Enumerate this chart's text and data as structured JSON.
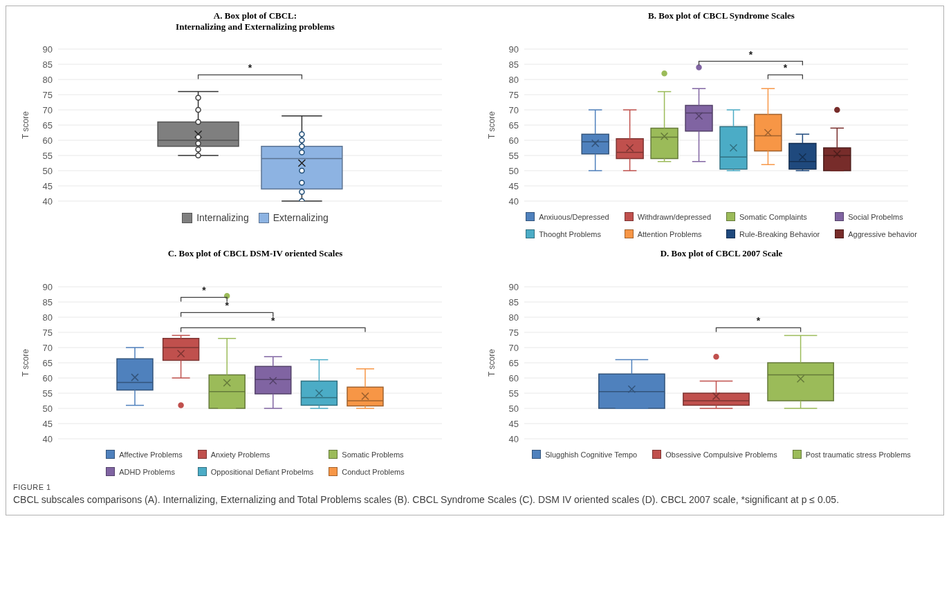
{
  "chart_data": [
    {
      "type": "box",
      "title": "A. Box plot of CBCL:\nInternalizing and Externalizing problems",
      "ylabel": "T score",
      "categories": [
        null
      ],
      "ylim": [
        40,
        90
      ],
      "yticks": [
        40,
        45,
        50,
        55,
        60,
        65,
        70,
        75,
        80,
        85,
        90
      ],
      "grid": "y",
      "legend": "bottom",
      "marker": "circle",
      "series": [
        {
          "name": "Internalizing",
          "color": "#7f7f7f",
          "boxes": [
            {
              "low": 55,
              "q1": 58,
              "median": 60,
              "q3": 66,
              "high": 76,
              "mean": 62
            }
          ]
        },
        {
          "type": "scatter",
          "color": "#404040",
          "x": [
            null,
            null,
            null,
            null,
            null,
            null,
            null
          ],
          "values": [
            74,
            70,
            66,
            61,
            59,
            57,
            55
          ]
        },
        {
          "name": "Externalizing",
          "color": "#8db3e2",
          "boxes": [
            {
              "low": 40,
              "q1": 44,
              "median": 54,
              "q3": 58,
              "high": 68,
              "mean": 52.5
            }
          ]
        },
        {
          "type": "scatter",
          "color": "#1f4e79",
          "x": [
            null,
            null,
            null,
            null,
            null,
            null,
            null,
            null
          ],
          "values": [
            62,
            60,
            58,
            56,
            50,
            46,
            43,
            40
          ]
        }
      ],
      "annotations": [
        "*"
      ]
    },
    {
      "type": "box",
      "title": "B. Box plot of CBCL Syndrome Scales",
      "ylabel": "T score",
      "categories": [
        null
      ],
      "ylim": [
        40,
        90
      ],
      "yticks": [
        40,
        45,
        50,
        55,
        60,
        65,
        70,
        75,
        80,
        85,
        90
      ],
      "grid": "y",
      "legend": "bottom",
      "series": [
        {
          "name": "Anxiuous/Depressed",
          "color": "#4f81bd",
          "boxes": [
            {
              "low": 50,
              "q1": 55.5,
              "median": 59.5,
              "q3": 62,
              "high": 70,
              "mean": 59
            }
          ]
        },
        {
          "name": "Withdrawn/depressed",
          "color": "#c0504d",
          "boxes": [
            {
              "low": 50,
              "q1": 54,
              "median": 56,
              "q3": 60.5,
              "high": 70,
              "mean": 57.5
            }
          ]
        },
        {
          "name": "Somatic Complaints",
          "color": "#9bbb59",
          "boxes": [
            {
              "low": 53,
              "q1": 54,
              "median": 61,
              "q3": 64,
              "high": 76,
              "mean": 61.3,
              "outliers": [
                82
              ]
            }
          ]
        },
        {
          "name": "Social Probelms",
          "color": "#8064a2",
          "boxes": [
            {
              "low": 53,
              "q1": 63,
              "median": 69,
              "q3": 71.5,
              "high": 77,
              "mean": 68,
              "outliers": [
                84
              ]
            }
          ]
        },
        {
          "name": "Thooght Problems",
          "color": "#4bacc6",
          "boxes": [
            {
              "low": 50,
              "q1": 50.5,
              "median": 54.5,
              "q3": 64.5,
              "high": 70,
              "mean": 57.5
            }
          ]
        },
        {
          "name": "Attention Problems",
          "color": "#f79646",
          "boxes": [
            {
              "low": 52,
              "q1": 56.5,
              "median": 61.5,
              "q3": 68.5,
              "high": 77,
              "mean": 62.5
            }
          ]
        },
        {
          "name": "Rule-Breaking Behavior",
          "color": "#1f497d",
          "boxes": [
            {
              "low": 50,
              "q1": 50.5,
              "median": 53,
              "q3": 59,
              "high": 62,
              "mean": 54.5
            }
          ]
        },
        {
          "name": "Aggressive behavior",
          "color": "#772c2a",
          "boxes": [
            {
              "low": 50,
              "q1": 50,
              "median": 55,
              "q3": 57.5,
              "high": 64,
              "mean": 55.5,
              "outliers": [
                70
              ]
            }
          ]
        }
      ],
      "annotations": [
        "*",
        "*"
      ]
    },
    {
      "type": "box",
      "title": "C. Box plot of CBCL DSM-IV oriented Scales",
      "ylabel": "T score",
      "categories": [
        null
      ],
      "ylim": [
        40,
        90
      ],
      "yticks": [
        40,
        45,
        50,
        55,
        60,
        65,
        70,
        75,
        80,
        85,
        90
      ],
      "grid": "y",
      "legend": "bottom",
      "series": [
        {
          "name": "Affective Problems",
          "color": "#4f81bd",
          "boxes": [
            {
              "low": 51,
              "q1": 56,
              "median": 58.5,
              "q3": 66.3,
              "high": 70,
              "mean": 60.2
            }
          ]
        },
        {
          "name": "Anxiety Problems",
          "color": "#c0504d",
          "boxes": [
            {
              "low": 60,
              "q1": 65.8,
              "median": 70,
              "q3": 73,
              "high": 74,
              "mean": 68,
              "outliers": [
                51
              ]
            }
          ]
        },
        {
          "name": "Somatic Problems",
          "color": "#9bbb59",
          "boxes": [
            {
              "low": 50,
              "q1": 50,
              "median": 55.5,
              "q3": 61,
              "high": 73,
              "mean": 58.4,
              "outliers": [
                87
              ]
            }
          ]
        },
        {
          "name": "ADHD Problems",
          "color": "#8064a2",
          "boxes": [
            {
              "low": 50,
              "q1": 54.8,
              "median": 59.5,
              "q3": 63.8,
              "high": 67,
              "mean": 59.1
            }
          ]
        },
        {
          "name": "Oppositional Defiant Probelms",
          "color": "#4bacc6",
          "boxes": [
            {
              "low": 50,
              "q1": 51,
              "median": 53.5,
              "q3": 59,
              "high": 66,
              "mean": 55
            }
          ]
        },
        {
          "name": "Conduct Problems",
          "color": "#f79646",
          "boxes": [
            {
              "low": 50,
              "q1": 50.8,
              "median": 52.5,
              "q3": 57,
              "high": 63,
              "mean": 54
            }
          ]
        }
      ],
      "annotations": [
        "*",
        "*",
        "*"
      ]
    },
    {
      "type": "box",
      "title": "D. Box plot of CBCL 2007 Scale",
      "ylabel": "T score",
      "categories": [
        null
      ],
      "ylim": [
        40,
        90
      ],
      "yticks": [
        40,
        45,
        50,
        55,
        60,
        65,
        70,
        75,
        80,
        85,
        90
      ],
      "grid": "y",
      "legend": "bottom",
      "series": [
        {
          "name": "Slugghish Cognitive Tempo",
          "color": "#4f81bd",
          "boxes": [
            {
              "low": 50,
              "q1": 50,
              "median": 55.5,
              "q3": 61.3,
              "high": 66,
              "mean": 56.3
            }
          ]
        },
        {
          "name": "Obsessive Compulsive Problems",
          "color": "#c0504d",
          "boxes": [
            {
              "low": 50,
              "q1": 51,
              "median": 52.5,
              "q3": 55,
              "high": 59,
              "mean": 54,
              "outliers": [
                67
              ]
            }
          ]
        },
        {
          "name": "Post traumatic stress Problems",
          "color": "#9bbb59",
          "boxes": [
            {
              "low": 50,
              "q1": 52.5,
              "median": 61,
              "q3": 65,
              "high": 74,
              "mean": 59.7
            }
          ]
        }
      ],
      "annotations": [
        "*",
        "FIGURE 1",
        "CBCL subscales comparisons (A). Internalizing, Externalizing and Total Problems scales (B). CBCL Syndrome Scales (C). DSM IV oriented scales (D). CBCL 2007 scale, *significant at p ≤ 0.05."
      ]
    }
  ]
}
